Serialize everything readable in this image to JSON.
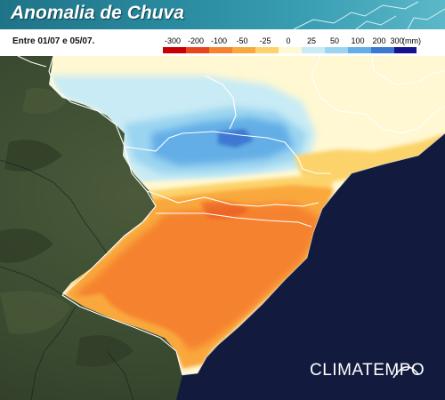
{
  "header": {
    "title": "Anomalia de Chuva"
  },
  "period": {
    "text": "Entre 01/07 e 05/07."
  },
  "legend": {
    "unit": "(mm)",
    "classes": [
      {
        "label": "-300",
        "color": "#c80000"
      },
      {
        "label": "-200",
        "color": "#e6461e"
      },
      {
        "label": "-100",
        "color": "#f5822d"
      },
      {
        "label": "-50",
        "color": "#f9a83c"
      },
      {
        "label": "-25",
        "color": "#fcd36b"
      },
      {
        "label": "0",
        "color": "#fff8d2"
      },
      {
        "label": "25",
        "color": "#c8ebf5"
      },
      {
        "label": "50",
        "color": "#9ad4f0"
      },
      {
        "label": "100",
        "color": "#64aee6"
      },
      {
        "label": "200",
        "color": "#3c78d2"
      },
      {
        "label": "300",
        "color": "#14148c"
      }
    ]
  },
  "map": {
    "region": "South Brazil rainfall anomaly",
    "colors": {
      "land": "#3b4a32",
      "ocean": "#121a3d",
      "border": "#ffffff"
    }
  },
  "brand": {
    "logo_text": "CLIMATEMPO"
  }
}
